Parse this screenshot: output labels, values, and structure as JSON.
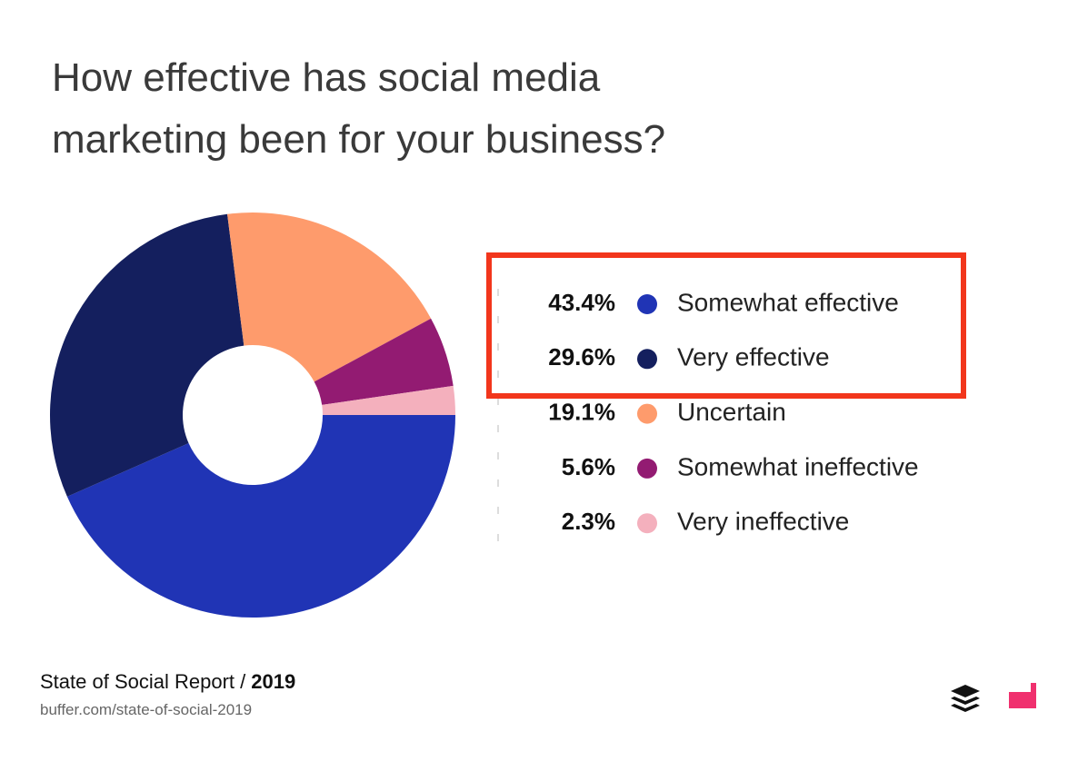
{
  "chart_data": {
    "type": "pie",
    "title": "How effective has social media marketing been for your business?",
    "categories": [
      "Somewhat effective",
      "Very effective",
      "Uncertain",
      "Somewhat ineffective",
      "Very ineffective"
    ],
    "values": [
      43.4,
      29.6,
      19.1,
      5.6,
      2.3
    ],
    "value_labels": [
      "43.4%",
      "29.6%",
      "19.1%",
      "5.6%",
      "2.3%"
    ],
    "colors": [
      "#2034b5",
      "#141f5e",
      "#fe9b6c",
      "#931b72",
      "#f4b0bd"
    ],
    "source": "State of Social Report /",
    "source_year": "2019",
    "source_url": "buffer.com/state-of-social-2019"
  }
}
